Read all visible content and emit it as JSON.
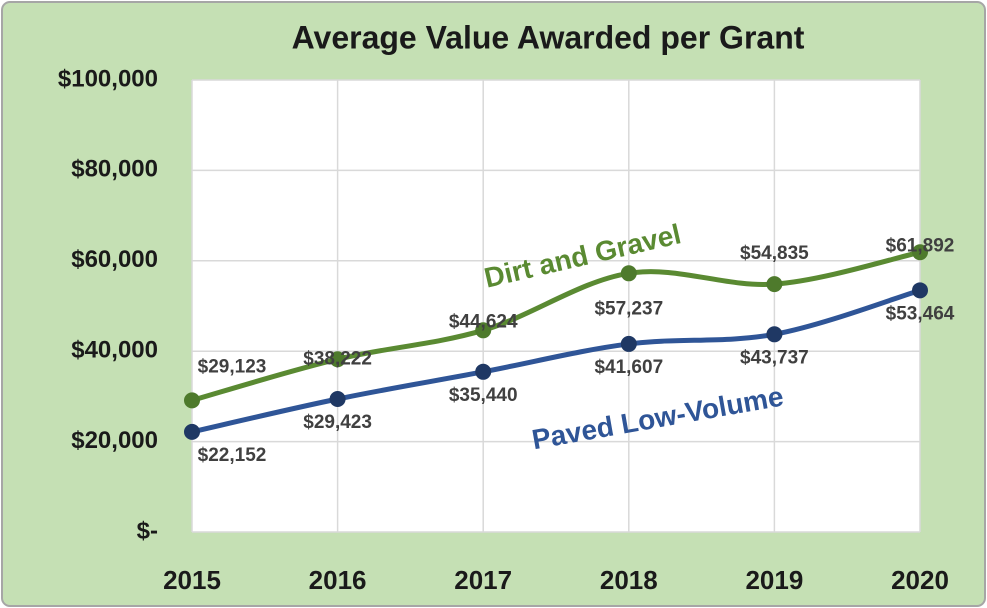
{
  "chart_data": {
    "type": "line",
    "title": "Average Value Awarded per Grant",
    "categories": [
      "2015",
      "2016",
      "2017",
      "2018",
      "2019",
      "2020"
    ],
    "series": [
      {
        "name": "Dirt and Gravel",
        "color": "#5a8a32",
        "values": [
          29123,
          38222,
          44624,
          57237,
          54835,
          61892
        ],
        "value_labels": [
          "$29,123",
          "$38,222",
          "$44,624",
          "$57,237",
          "$54,835",
          "$61,892"
        ]
      },
      {
        "name": "Paved Low-Volume",
        "color": "#2f5597",
        "values": [
          22152,
          29423,
          35440,
          41607,
          43737,
          53464
        ],
        "value_labels": [
          "$22,152",
          "$29,423",
          "$35,440",
          "$41,607",
          "$43,737",
          "$53,464"
        ]
      }
    ],
    "ylim": [
      0,
      100000
    ],
    "yticks": [
      {
        "value": 0,
        "label": "$-"
      },
      {
        "value": 20000,
        "label": "$20,000"
      },
      {
        "value": 40000,
        "label": "$40,000"
      },
      {
        "value": 60000,
        "label": "$60,000"
      },
      {
        "value": 80000,
        "label": "$80,000"
      },
      {
        "value": 100000,
        "label": "$100,000"
      }
    ],
    "grid": true
  }
}
